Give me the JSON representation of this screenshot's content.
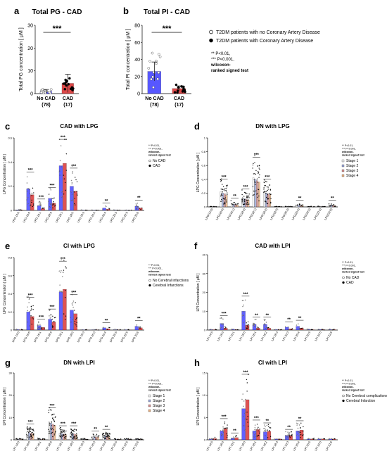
{
  "colors": {
    "noCAD": "#3a3aff",
    "CAD": "#d62828",
    "s1": "#f2f2f2",
    "s2": "#9aa6d8",
    "s3": "#d68e8e",
    "s4": "#e8b080",
    "err": "#222222"
  },
  "legend_ab": {
    "items": [
      {
        "label": "T2DM patients with no Coronary Artery Disease",
        "marker": "open-circle"
      },
      {
        "label": "T2DM patients with Coronary Artery Disease",
        "marker": "filled-circle"
      }
    ],
    "notes": [
      "** P<0.01,",
      "*** P<0.001,",
      "wilcoxon-",
      "ranked signed test"
    ]
  },
  "chart_data": [
    {
      "id": "a",
      "letter": "a",
      "type": "bar",
      "title": "Total PG - CAD",
      "ylabel": "Total PG concentration [ μM ]",
      "ylim": [
        0,
        30
      ],
      "yticks": [
        0,
        10,
        20,
        30
      ],
      "categories": [
        "No CAD",
        "CAD"
      ],
      "category_n": [
        "(78)",
        "(17)"
      ],
      "series": [
        {
          "values": [
            1,
            4.5
          ]
        }
      ],
      "errors": [
        0.8,
        4
      ],
      "significance": [
        {
          "a": 0,
          "b": 1,
          "label": "***"
        }
      ]
    },
    {
      "id": "b",
      "letter": "b",
      "type": "bar",
      "title": "Total PI - CAD",
      "ylabel": "Total PI concentration [ μM ]",
      "ylim": [
        0,
        80
      ],
      "yticks": [
        0,
        20,
        40,
        60,
        80
      ],
      "categories": [
        "No CAD",
        "CAD"
      ],
      "category_n": [
        "(78)",
        "(17)"
      ],
      "series": [
        {
          "values": [
            26,
            6
          ]
        }
      ],
      "errors": [
        11,
        3
      ],
      "significance": [
        {
          "a": 0,
          "b": 1,
          "label": "***"
        }
      ]
    },
    {
      "id": "c",
      "letter": "c",
      "type": "bar",
      "title": "CAD with LPG",
      "ylabel": "LPG Concentration [ μM ]",
      "ylim": [
        0,
        0.6
      ],
      "yticks": [
        0,
        0.2,
        0.4,
        0.6
      ],
      "categories": [
        "LPG 14:0",
        "LPG 16:0",
        "LPG 16:1",
        "LPG 18:0",
        "LPG 18:1",
        "LPG 18:2",
        "LPG 18:3",
        "LPG 20:3",
        "LPG 20:4",
        "LPG 20:5",
        "LPG 22:5",
        "LPG 22:6"
      ],
      "series": [
        {
          "name": "No CAD",
          "values": [
            0.005,
            0.18,
            0.04,
            0.1,
            0.37,
            0.2,
            0.003,
            0.003,
            0.02,
            0.003,
            0.003,
            0.035
          ]
        },
        {
          "name": "CAD",
          "values": [
            0.004,
            0.13,
            0.015,
            0.06,
            0.39,
            0.16,
            0.002,
            0.002,
            0.01,
            0.002,
            0.002,
            0.02
          ]
        }
      ],
      "significance": [
        {
          "i": 1,
          "label": "***"
        },
        {
          "i": 2,
          "label": "***"
        },
        {
          "i": 3,
          "label": "***"
        },
        {
          "i": 4,
          "label": "***"
        },
        {
          "i": 5,
          "label": "***"
        },
        {
          "i": 8,
          "label": "**"
        },
        {
          "i": 11,
          "label": "**"
        }
      ],
      "notes": [
        "** P<0.01,",
        "*** P<0.001,",
        "wilcoxon-",
        "ranked signed test"
      ],
      "legend": [
        {
          "label": "No CAD",
          "marker": "open"
        },
        {
          "label": "CAD",
          "marker": "filled"
        }
      ]
    },
    {
      "id": "d",
      "letter": "d",
      "type": "bar",
      "title": "DN with LPG",
      "ylabel": "LPG Concentration [ μM ]",
      "ylim": [
        0,
        1.0
      ],
      "yticks": [
        0,
        0.2,
        0.4,
        0.6,
        0.8,
        1.0
      ],
      "categories": [
        "LPG(14:0)",
        "LPG(16:0)",
        "LPG(16:1)",
        "LPG(18:0)",
        "LPG(18:1)",
        "LPG(18:2)",
        "LPG(18:3)",
        "LPG(20:3)",
        "LPG(20:4)",
        "LPG(20:5)",
        "LPG(22:5)",
        "LPG(22:6)"
      ],
      "series": [
        {
          "name": "Stage 1",
          "values": [
            0.005,
            0.22,
            0.05,
            0.13,
            0.42,
            0.22,
            0.005,
            0.005,
            0.03,
            0.005,
            0.005,
            0.03
          ]
        },
        {
          "name": "Stage 2",
          "values": [
            0.004,
            0.2,
            0.04,
            0.12,
            0.4,
            0.2,
            0.004,
            0.004,
            0.025,
            0.004,
            0.004,
            0.025
          ]
        },
        {
          "name": "Stage 3",
          "values": [
            0.004,
            0.19,
            0.035,
            0.11,
            0.38,
            0.19,
            0.004,
            0.004,
            0.02,
            0.004,
            0.004,
            0.02
          ]
        },
        {
          "name": "Stage 4",
          "values": [
            0.003,
            0.17,
            0.03,
            0.1,
            0.36,
            0.18,
            0.003,
            0.003,
            0.02,
            0.003,
            0.003,
            0.02
          ]
        }
      ],
      "significance": [
        {
          "i": 1,
          "label": "***"
        },
        {
          "i": 2,
          "label": "**"
        },
        {
          "i": 3,
          "label": "***"
        },
        {
          "i": 4,
          "label": "***"
        },
        {
          "i": 5,
          "label": "***"
        },
        {
          "i": 8,
          "label": "**"
        },
        {
          "i": 11,
          "label": "**"
        }
      ],
      "notes": [
        "** P<0.01,",
        "*** P<0.001,",
        "wilcoxon-",
        "ranked signed test"
      ],
      "legend": [
        {
          "label": "Stage 1"
        },
        {
          "label": "Stage 2"
        },
        {
          "label": "Stage 3"
        },
        {
          "label": "Stage 4"
        }
      ]
    },
    {
      "id": "e",
      "letter": "e",
      "type": "bar",
      "title": "CI with LPG",
      "ylabel": "LPG Concentration [ μM ]",
      "ylim": [
        0,
        0.8
      ],
      "yticks": [
        0,
        0.2,
        0.4,
        0.6,
        0.8
      ],
      "categories": [
        "LPG 14:0",
        "LPG 16:0",
        "LPG 16:1",
        "LPG 18:0",
        "LPG 18:1",
        "LPG 18:2",
        "LPG 18:3",
        "LPG 20:3",
        "LPG 20:4",
        "LPG 20:5",
        "LPG 22:5",
        "LPG 22:6"
      ],
      "series": [
        {
          "name": "No Cerebral infarctions",
          "values": [
            0.005,
            0.2,
            0.05,
            0.12,
            0.42,
            0.22,
            0.004,
            0.004,
            0.025,
            0.004,
            0.004,
            0.04
          ]
        },
        {
          "name": "Cerebral Infarctions",
          "values": [
            0.004,
            0.15,
            0.03,
            0.09,
            0.45,
            0.18,
            0.003,
            0.003,
            0.015,
            0.003,
            0.003,
            0.025
          ]
        }
      ],
      "significance": [
        {
          "i": 1,
          "label": "***"
        },
        {
          "i": 2,
          "label": "***"
        },
        {
          "i": 3,
          "label": "***"
        },
        {
          "i": 4,
          "label": "***"
        },
        {
          "i": 5,
          "label": "***"
        },
        {
          "i": 8,
          "label": "**"
        },
        {
          "i": 11,
          "label": "**"
        }
      ],
      "notes": [
        "** P<0.01,",
        "*** P<0.001,",
        "wilcoxon-",
        "ranked signed test"
      ],
      "legend": [
        {
          "label": "No Cerebral infarctions",
          "marker": "open"
        },
        {
          "label": "Cerebral Infarctions",
          "marker": "filled"
        }
      ]
    },
    {
      "id": "f",
      "letter": "f",
      "type": "bar",
      "title": "CAD with LPI",
      "ylabel": "LPI Concentration [ μM ]",
      "ylim": [
        0,
        40
      ],
      "yticks": [
        0,
        10,
        20,
        30,
        40
      ],
      "categories": [
        "LPI 14:0",
        "LPI 16:0",
        "LPI 16:1",
        "LPI 18:0",
        "LPI 18:1",
        "LPI 18:2",
        "LPI 18:3",
        "LPI 20:3",
        "LPI 20:4",
        "LPI 20:5",
        "LPI 22:5",
        "LPI 22:6"
      ],
      "series": [
        {
          "name": "No CAD",
          "values": [
            0.3,
            3.5,
            0.5,
            10,
            3,
            3,
            0.3,
            1.5,
            2,
            0.3,
            0.3,
            0.3
          ]
        },
        {
          "name": "CAD",
          "values": [
            0.2,
            1,
            0.2,
            2.5,
            1,
            1,
            0.2,
            0.6,
            1,
            0.2,
            0.2,
            0.2
          ]
        }
      ],
      "significance": [
        {
          "i": 1,
          "label": "***"
        },
        {
          "i": 3,
          "label": "***"
        },
        {
          "i": 4,
          "label": "**"
        },
        {
          "i": 5,
          "label": "**"
        },
        {
          "i": 7,
          "label": "**"
        },
        {
          "i": 8,
          "label": "**"
        }
      ],
      "notes": [
        "** P<0.01,",
        "*** P<0.001,",
        "wilcoxon-",
        "ranked signed test"
      ],
      "legend": [
        {
          "label": "No CAD",
          "marker": "open"
        },
        {
          "label": "CAD",
          "marker": "filled"
        }
      ]
    },
    {
      "id": "g",
      "letter": "g",
      "type": "bar",
      "title": "DN with LPI",
      "ylabel": "LPI Concentration [ μM ]",
      "ylim": [
        0,
        30
      ],
      "yticks": [
        0,
        10,
        20,
        30
      ],
      "categories": [
        "LPI 14:0",
        "LPI 16:0",
        "LPI 16:1",
        "LPI 18:0",
        "LPI 18:1",
        "LPI 18:2",
        "LPI 18:3",
        "LPI 20:3",
        "LPI 20:4",
        "LPI 20:5",
        "LPI 22:5",
        "LPI 22:6"
      ],
      "series": [
        {
          "name": "Stage 1",
          "values": [
            0.3,
            3.5,
            0.4,
            8,
            3,
            3,
            0.3,
            1.5,
            2,
            0.3,
            0.3,
            0.3
          ]
        },
        {
          "name": "Stage 2",
          "values": [
            0.3,
            3.2,
            0.35,
            7.5,
            2.8,
            2.8,
            0.3,
            1.4,
            1.8,
            0.3,
            0.3,
            0.3
          ]
        },
        {
          "name": "Stage 3",
          "values": [
            0.3,
            3,
            0.3,
            7,
            2.6,
            2.6,
            0.3,
            1.3,
            1.7,
            0.3,
            0.3,
            0.3
          ]
        },
        {
          "name": "Stage 4",
          "values": [
            0.2,
            2.8,
            0.3,
            6.5,
            2.4,
            2.4,
            0.2,
            1.2,
            1.6,
            0.2,
            0.2,
            0.2
          ]
        }
      ],
      "significance": [
        {
          "i": 1,
          "label": "***"
        },
        {
          "i": 3,
          "label": "***"
        },
        {
          "i": 4,
          "label": "***"
        },
        {
          "i": 5,
          "label": "***"
        },
        {
          "i": 7,
          "label": "**"
        },
        {
          "i": 8,
          "label": "**"
        }
      ],
      "notes": [
        "** P<0.01,",
        "*** P<0.001,",
        "wilcoxon-",
        "ranked signed test"
      ],
      "legend": [
        {
          "label": "Stage 1"
        },
        {
          "label": "Stage 2"
        },
        {
          "label": "Stage 3"
        },
        {
          "label": "Stage 4"
        }
      ]
    },
    {
      "id": "h",
      "letter": "h",
      "type": "bar",
      "title": "CI with LPI",
      "ylabel": "LPI Concentration [ μM ]",
      "ylim": [
        0,
        15
      ],
      "yticks": [
        0,
        5,
        10,
        15
      ],
      "categories": [
        "LPI 14:0",
        "LPI 16:0",
        "LPI 16:1",
        "LPI 18:0",
        "LPI 18:1",
        "LPI 18:2",
        "LPI 18:3",
        "LPI 20:3",
        "LPI 20:4",
        "LPI 20:5",
        "LPI 22:5",
        "LPI 22:6"
      ],
      "series": [
        {
          "name": "No Cerebral complications",
          "values": [
            0.2,
            2,
            0.4,
            7,
            2,
            1.8,
            0.2,
            1,
            2,
            0.2,
            0.2,
            0.2
          ]
        },
        {
          "name": "Cerebral Infarction",
          "values": [
            0.3,
            2.5,
            0.5,
            9,
            2.3,
            1.9,
            0.2,
            1,
            2.2,
            0.2,
            0.2,
            0.2
          ]
        }
      ],
      "significance": [
        {
          "i": 1,
          "label": "***"
        },
        {
          "i": 2,
          "label": "**"
        },
        {
          "i": 3,
          "label": "***"
        },
        {
          "i": 4,
          "label": "***"
        },
        {
          "i": 5,
          "label": "**"
        },
        {
          "i": 7,
          "label": "**"
        },
        {
          "i": 8,
          "label": "**"
        }
      ],
      "notes": [
        "** P<0.01,",
        "*** P<0.001,",
        "wilcoxon-",
        "ranked signed test"
      ],
      "legend": [
        {
          "label": "No Cerebral complications",
          "marker": "open"
        },
        {
          "label": "Cerebral Infarction",
          "marker": "filled"
        }
      ]
    }
  ]
}
